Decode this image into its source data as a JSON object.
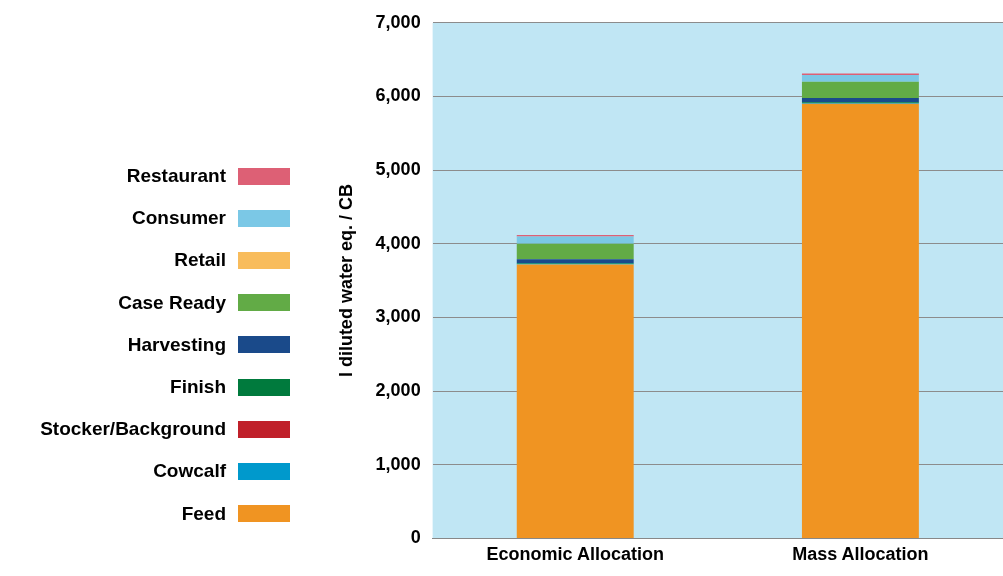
{
  "chart_data": {
    "type": "bar",
    "stacked": true,
    "ylabel": "l diluted water eq. / CB",
    "categories": [
      "Economic Allocation",
      "Mass Allocation"
    ],
    "ylim": [
      0,
      7000
    ],
    "yticks": [
      {
        "value": 0,
        "label": "0"
      },
      {
        "value": 1000,
        "label": "1,000"
      },
      {
        "value": 2000,
        "label": "2,000"
      },
      {
        "value": 3000,
        "label": "3,000"
      },
      {
        "value": 4000,
        "label": "4,000"
      },
      {
        "value": 5000,
        "label": "5,000"
      },
      {
        "value": 6000,
        "label": "6,000"
      },
      {
        "value": 7000,
        "label": "7,000"
      }
    ],
    "grid": "y",
    "legend": "left",
    "series": [
      {
        "name": "Feed",
        "color": "#f09422",
        "values": [
          3720,
          5900
        ]
      },
      {
        "name": "Cowcalf",
        "color": "#0099cc",
        "values": [
          10,
          10
        ]
      },
      {
        "name": "Stocker/Background",
        "color": "#c0202a",
        "values": [
          null,
          null
        ]
      },
      {
        "name": "Finish",
        "color": "#007a3d",
        "values": [
          10,
          10
        ]
      },
      {
        "name": "Harvesting",
        "color": "#1a4a8a",
        "values": [
          50,
          60
        ]
      },
      {
        "name": "Case Ready",
        "color": "#62ab46",
        "values": [
          210,
          220
        ]
      },
      {
        "name": "Retail",
        "color": "#f8bc5c",
        "values": [
          null,
          null
        ]
      },
      {
        "name": "Consumer",
        "color": "#7bc8e6",
        "values": [
          100,
          90
        ]
      },
      {
        "name": "Restaurant",
        "color": "#dd6075",
        "values": [
          20,
          20
        ]
      }
    ]
  }
}
